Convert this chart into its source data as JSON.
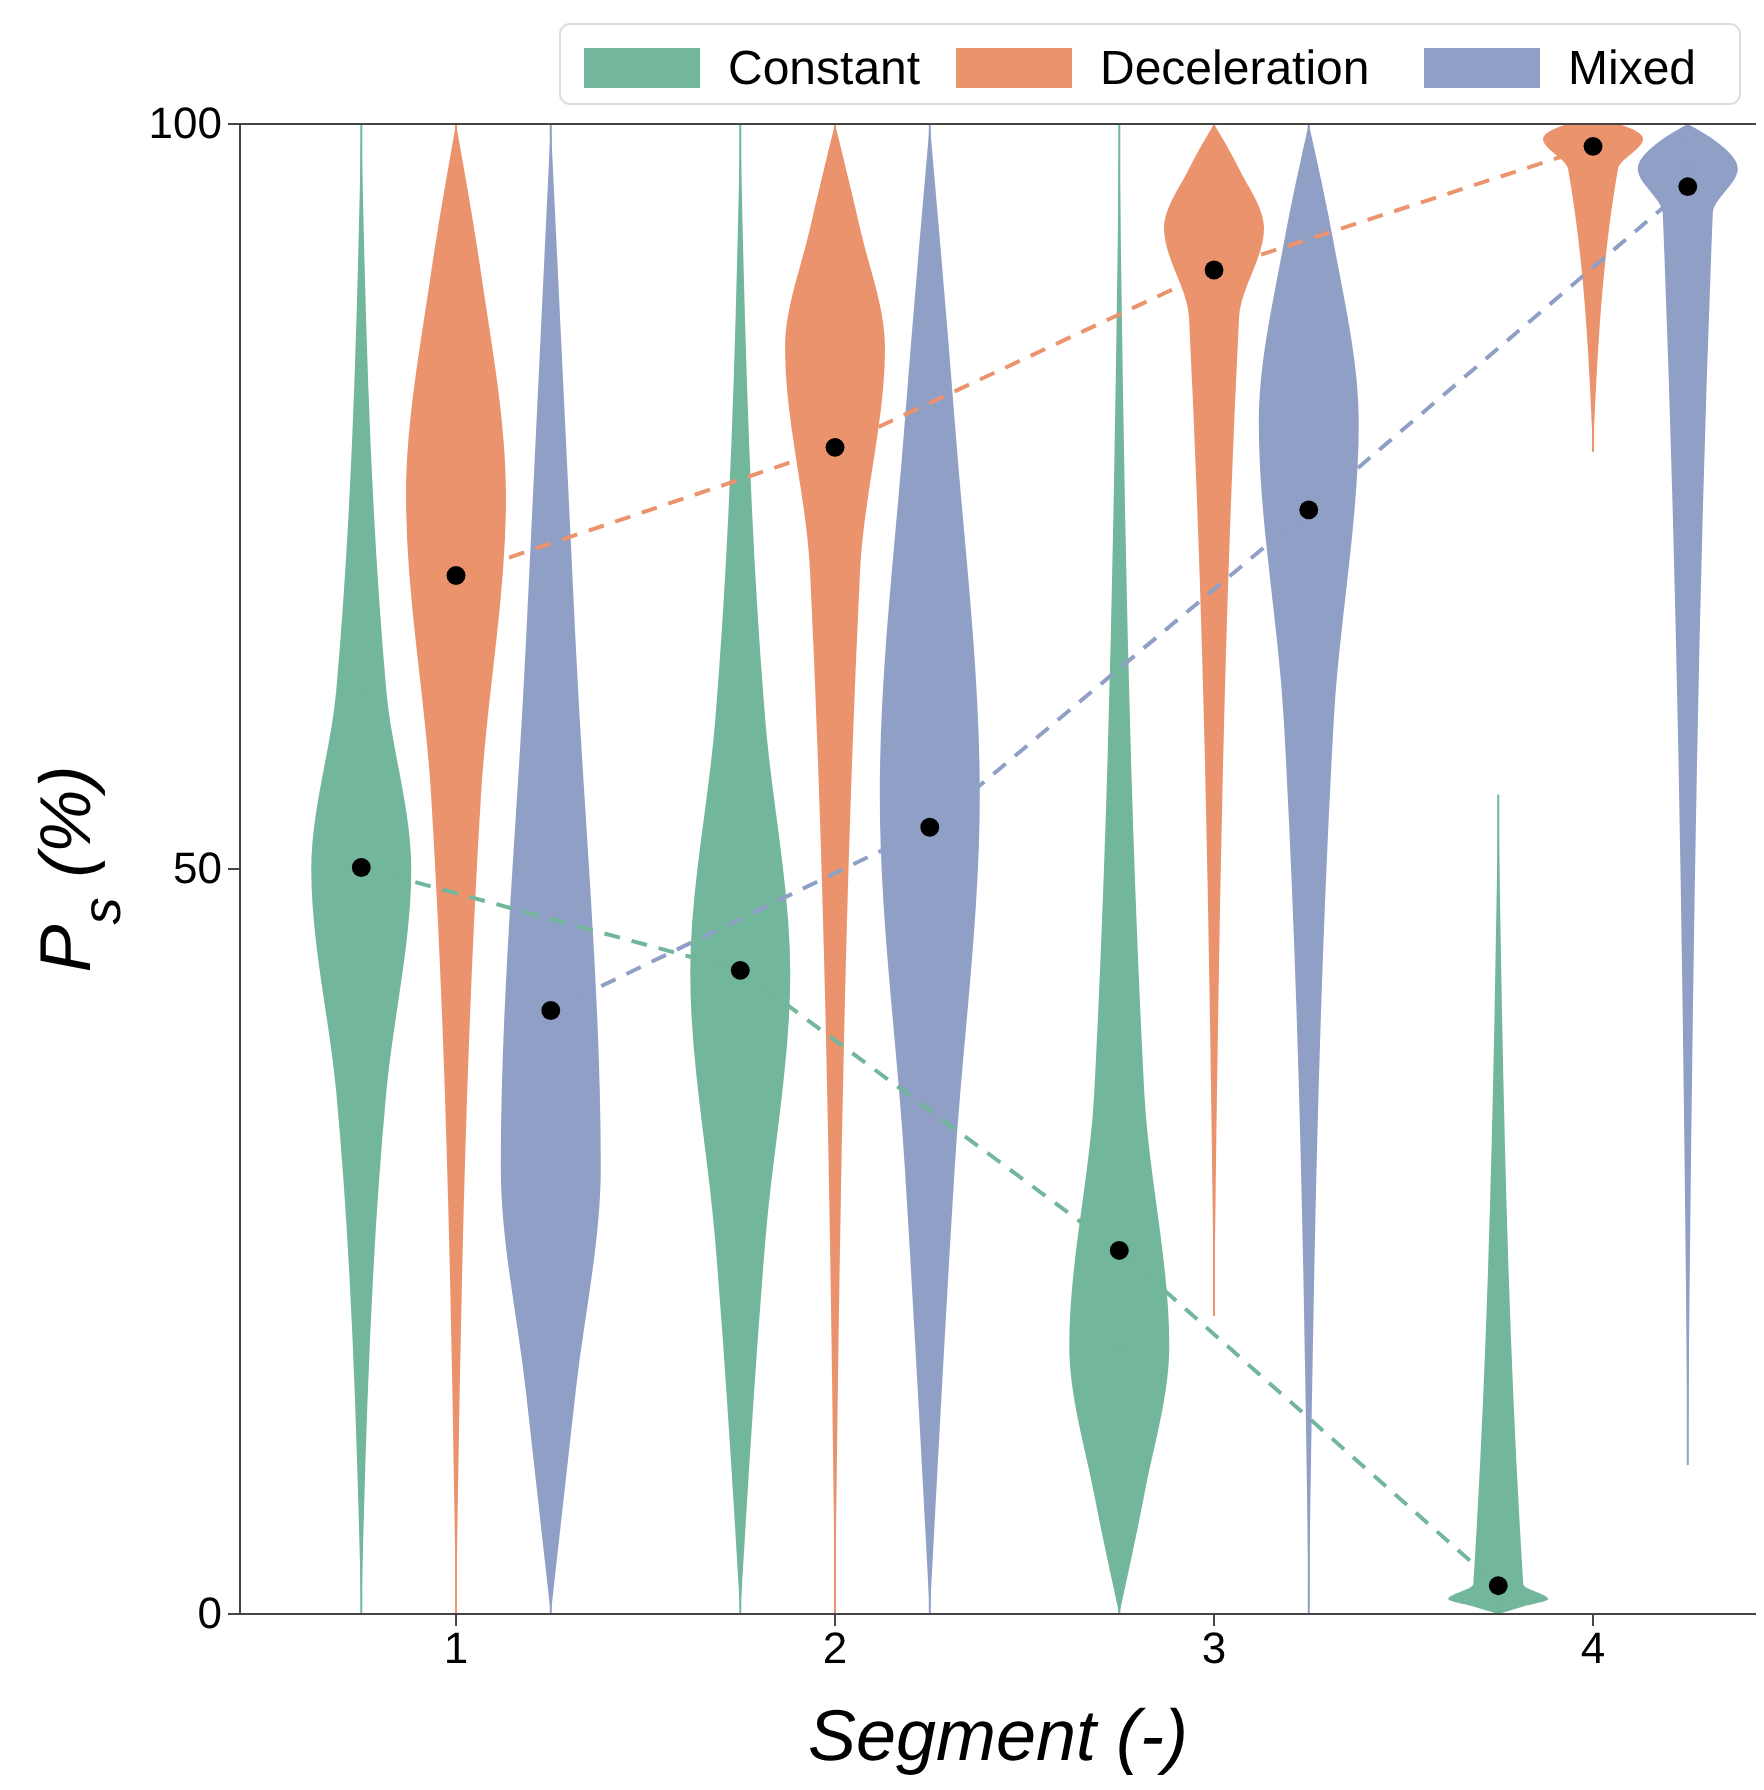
{
  "chart_data": {
    "type": "box",
    "xlabel": "Segment (-)",
    "ylabel": "P$_{s}$ (%)",
    "xlim": [
      0.43,
      4.43
    ],
    "xticks": [
      1,
      2,
      3,
      4
    ],
    "ylim": [
      0,
      100
    ],
    "yticks": [
      0,
      50,
      100
    ],
    "legend": "top",
    "grid": false,
    "series": [
      {
        "name": "Constant",
        "color": "#72b69b",
        "x": [
          0.75,
          1.75,
          2.75,
          3.75
        ],
        "boxes": [
          {
            "low": 0,
            "q1": 35,
            "median": 50,
            "q3": 62,
            "high": 100
          },
          {
            "low": 0,
            "q1": 25,
            "median": 43,
            "q3": 60,
            "high": 100
          },
          {
            "low": 0,
            "q1": 8,
            "median": 18,
            "q3": 35,
            "high": 100
          },
          {
            "low": 0,
            "q1": 0.5,
            "median": 1,
            "q3": 2,
            "high": 55
          }
        ]
      },
      {
        "name": "Deceleration",
        "color": "#ea936c",
        "x": [
          1,
          2,
          3,
          4
        ],
        "boxes": [
          {
            "low": 0,
            "q1": 55,
            "median": 75,
            "q3": 90,
            "high": 100
          },
          {
            "low": 0,
            "q1": 70,
            "median": 85,
            "q3": 93,
            "high": 100
          },
          {
            "low": 20,
            "q1": 87,
            "median": 93,
            "q3": 97,
            "high": 100
          },
          {
            "low": 78,
            "q1": 97,
            "median": 99,
            "q3": 100,
            "high": 100
          }
        ]
      },
      {
        "name": "Mixed",
        "color": "#8f9fc6",
        "x": [
          1.25,
          2.25,
          3.25,
          4.25
        ],
        "boxes": [
          {
            "low": 0,
            "q1": 15,
            "median": 30,
            "q3": 65,
            "high": 100
          },
          {
            "low": 0,
            "q1": 30,
            "median": 55,
            "q3": 80,
            "high": 100
          },
          {
            "low": 0,
            "q1": 60,
            "median": 80,
            "q3": 92,
            "high": 100
          },
          {
            "low": 10,
            "q1": 94,
            "median": 97,
            "q3": 99,
            "high": 100
          }
        ]
      },
      {
        "type": "line",
        "color": "#72b69b",
        "x": [
          0.75,
          1.75,
          2.75,
          3.75
        ],
        "values": [
          50.1,
          43.2,
          24.4,
          1.9
        ],
        "line_style": "dashed",
        "marker": "circle"
      },
      {
        "type": "line",
        "color": "#ea936c",
        "x": [
          1,
          2,
          3,
          4
        ],
        "values": [
          69.7,
          78.3,
          90.2,
          98.5
        ],
        "line_style": "dashed",
        "marker": "circle"
      },
      {
        "type": "line",
        "color": "#8f9fc6",
        "x": [
          1.25,
          2.25,
          3.25,
          4.25
        ],
        "values": [
          40.5,
          52.8,
          74.1,
          95.8
        ],
        "line_style": "dashed",
        "marker": "circle"
      }
    ]
  }
}
